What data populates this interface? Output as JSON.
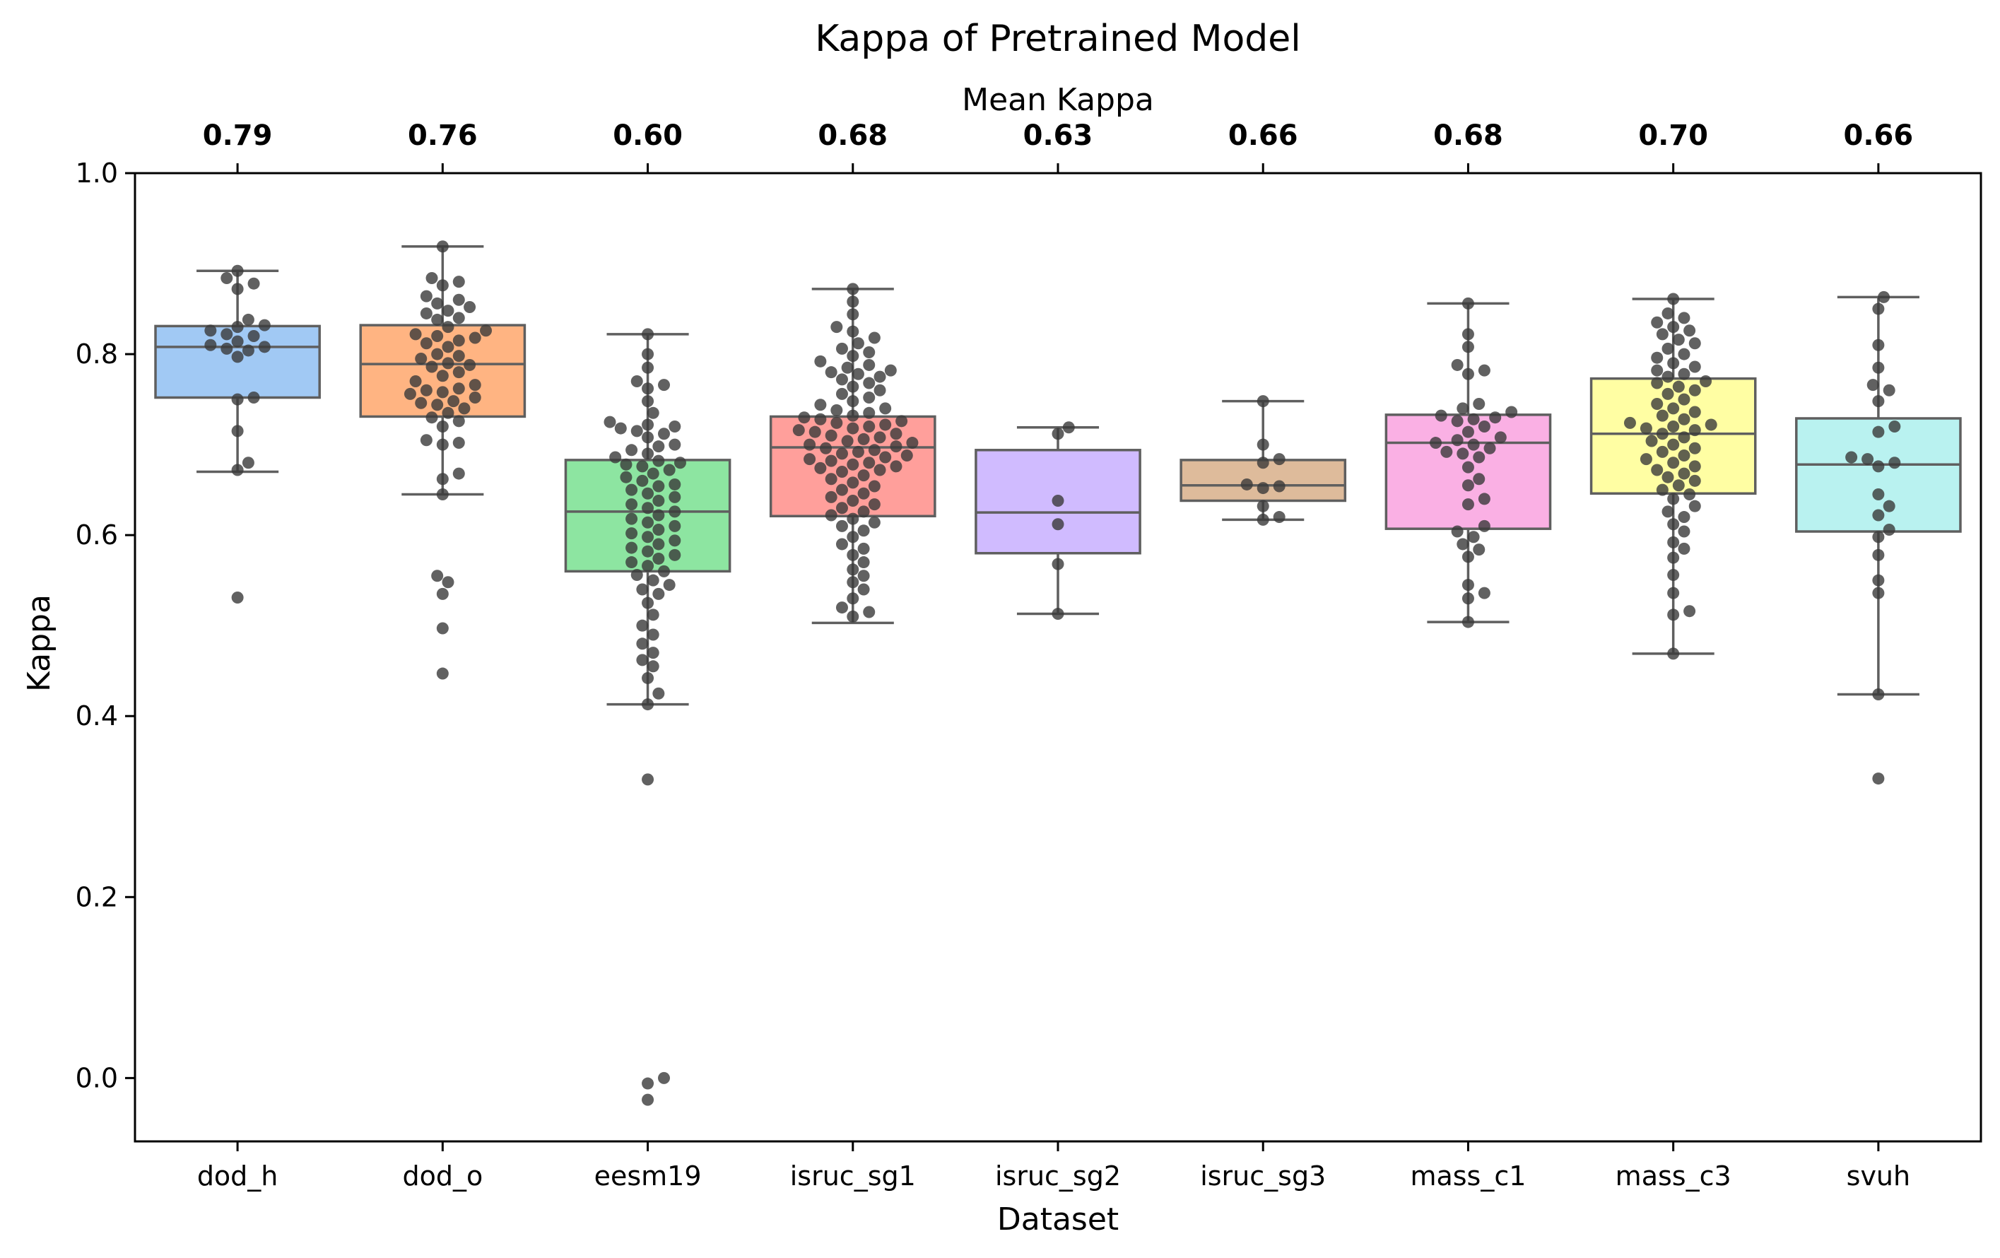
{
  "chart_data": {
    "type": "box",
    "title": "Kappa of Pretrained Model",
    "top_axis_label": "Mean Kappa",
    "xlabel": "Dataset",
    "ylabel": "Kappa",
    "ylim": [
      -0.07,
      1.0
    ],
    "yticks": [
      "0.0",
      "0.2",
      "0.4",
      "0.6",
      "0.8",
      "1.0"
    ],
    "ytick_values": [
      0.0,
      0.2,
      0.4,
      0.6,
      0.8,
      1.0
    ],
    "grid": false,
    "categories": [
      "dod_h",
      "dod_o",
      "eesm19",
      "isruc_sg1",
      "isruc_sg2",
      "isruc_sg3",
      "mass_c1",
      "mass_c3",
      "svuh"
    ],
    "means": [
      "0.79",
      "0.76",
      "0.60",
      "0.68",
      "0.63",
      "0.66",
      "0.68",
      "0.70",
      "0.66"
    ],
    "colors": [
      "#a1c9f4",
      "#ffb482",
      "#8de5a1",
      "#ff9f9b",
      "#d0bbff",
      "#debb9b",
      "#fab0e4",
      "#fffea3",
      "#b9f2f0"
    ],
    "boxes": [
      {
        "q1": 0.752,
        "median": 0.808,
        "q3": 0.831,
        "whisker_low": 0.67,
        "whisker_high": 0.892,
        "points": [
          0.892,
          0.884,
          0.878,
          0.872,
          0.838,
          0.832,
          0.83,
          0.826,
          0.822,
          0.82,
          0.814,
          0.81,
          0.808,
          0.806,
          0.804,
          0.797,
          0.752,
          0.75,
          0.715,
          0.68,
          0.672,
          0.531
        ]
      },
      {
        "q1": 0.731,
        "median": 0.789,
        "q3": 0.832,
        "whisker_low": 0.645,
        "whisker_high": 0.919,
        "points": [
          0.919,
          0.884,
          0.88,
          0.876,
          0.864,
          0.86,
          0.856,
          0.852,
          0.848,
          0.845,
          0.84,
          0.838,
          0.83,
          0.826,
          0.822,
          0.82,
          0.818,
          0.815,
          0.812,
          0.808,
          0.8,
          0.798,
          0.795,
          0.79,
          0.788,
          0.786,
          0.78,
          0.776,
          0.77,
          0.766,
          0.762,
          0.76,
          0.758,
          0.756,
          0.752,
          0.748,
          0.746,
          0.744,
          0.74,
          0.735,
          0.73,
          0.726,
          0.72,
          0.705,
          0.702,
          0.7,
          0.668,
          0.662,
          0.645,
          0.555,
          0.548,
          0.535,
          0.497,
          0.447
        ]
      },
      {
        "q1": 0.56,
        "median": 0.626,
        "q3": 0.683,
        "whisker_low": 0.413,
        "whisker_high": 0.822,
        "points": [
          0.822,
          0.8,
          0.785,
          0.77,
          0.766,
          0.762,
          0.748,
          0.735,
          0.725,
          0.722,
          0.72,
          0.718,
          0.715,
          0.712,
          0.708,
          0.7,
          0.698,
          0.694,
          0.69,
          0.686,
          0.682,
          0.68,
          0.678,
          0.676,
          0.672,
          0.668,
          0.664,
          0.66,
          0.656,
          0.654,
          0.65,
          0.646,
          0.642,
          0.638,
          0.634,
          0.63,
          0.626,
          0.622,
          0.618,
          0.614,
          0.61,
          0.606,
          0.602,
          0.598,
          0.594,
          0.59,
          0.586,
          0.582,
          0.578,
          0.574,
          0.57,
          0.566,
          0.56,
          0.556,
          0.55,
          0.545,
          0.54,
          0.535,
          0.525,
          0.512,
          0.5,
          0.49,
          0.48,
          0.47,
          0.462,
          0.455,
          0.442,
          0.425,
          0.413,
          0.33,
          0.0,
          -0.006,
          -0.024
        ]
      },
      {
        "q1": 0.621,
        "median": 0.697,
        "q3": 0.731,
        "whisker_low": 0.503,
        "whisker_high": 0.872,
        "points": [
          0.872,
          0.858,
          0.844,
          0.83,
          0.825,
          0.818,
          0.812,
          0.806,
          0.802,
          0.798,
          0.792,
          0.788,
          0.785,
          0.782,
          0.78,
          0.778,
          0.775,
          0.772,
          0.768,
          0.764,
          0.76,
          0.756,
          0.752,
          0.748,
          0.744,
          0.74,
          0.738,
          0.735,
          0.732,
          0.73,
          0.728,
          0.726,
          0.724,
          0.722,
          0.72,
          0.718,
          0.716,
          0.714,
          0.712,
          0.71,
          0.708,
          0.706,
          0.704,
          0.702,
          0.7,
          0.698,
          0.696,
          0.694,
          0.692,
          0.69,
          0.688,
          0.686,
          0.684,
          0.682,
          0.68,
          0.678,
          0.676,
          0.674,
          0.672,
          0.67,
          0.666,
          0.662,
          0.658,
          0.654,
          0.65,
          0.646,
          0.642,
          0.638,
          0.634,
          0.63,
          0.626,
          0.622,
          0.618,
          0.614,
          0.61,
          0.605,
          0.598,
          0.59,
          0.585,
          0.578,
          0.57,
          0.562,
          0.555,
          0.548,
          0.54,
          0.53,
          0.52,
          0.515,
          0.51
        ]
      },
      {
        "q1": 0.58,
        "median": 0.625,
        "q3": 0.694,
        "whisker_low": 0.513,
        "whisker_high": 0.719,
        "points": [
          0.719,
          0.712,
          0.638,
          0.612,
          0.568,
          0.513
        ]
      },
      {
        "q1": 0.638,
        "median": 0.655,
        "q3": 0.683,
        "whisker_low": 0.617,
        "whisker_high": 0.748,
        "points": [
          0.748,
          0.7,
          0.684,
          0.68,
          0.656,
          0.654,
          0.652,
          0.632,
          0.62,
          0.617
        ]
      },
      {
        "q1": 0.607,
        "median": 0.702,
        "q3": 0.733,
        "whisker_low": 0.504,
        "whisker_high": 0.856,
        "points": [
          0.856,
          0.822,
          0.808,
          0.788,
          0.782,
          0.778,
          0.745,
          0.74,
          0.736,
          0.732,
          0.73,
          0.728,
          0.726,
          0.72,
          0.714,
          0.708,
          0.705,
          0.702,
          0.7,
          0.696,
          0.692,
          0.69,
          0.686,
          0.675,
          0.662,
          0.655,
          0.64,
          0.634,
          0.61,
          0.604,
          0.598,
          0.59,
          0.584,
          0.576,
          0.545,
          0.536,
          0.53,
          0.504
        ]
      },
      {
        "q1": 0.646,
        "median": 0.712,
        "q3": 0.773,
        "whisker_low": 0.469,
        "whisker_high": 0.861,
        "points": [
          0.861,
          0.845,
          0.84,
          0.835,
          0.83,
          0.826,
          0.822,
          0.816,
          0.812,
          0.806,
          0.8,
          0.796,
          0.79,
          0.786,
          0.782,
          0.778,
          0.775,
          0.77,
          0.768,
          0.764,
          0.76,
          0.756,
          0.75,
          0.745,
          0.74,
          0.736,
          0.732,
          0.728,
          0.724,
          0.722,
          0.72,
          0.718,
          0.716,
          0.712,
          0.708,
          0.704,
          0.7,
          0.696,
          0.692,
          0.688,
          0.684,
          0.68,
          0.676,
          0.672,
          0.668,
          0.664,
          0.66,
          0.655,
          0.65,
          0.645,
          0.64,
          0.632,
          0.626,
          0.62,
          0.612,
          0.604,
          0.592,
          0.585,
          0.575,
          0.556,
          0.536,
          0.516,
          0.512,
          0.469
        ]
      },
      {
        "q1": 0.604,
        "median": 0.678,
        "q3": 0.729,
        "whisker_low": 0.424,
        "whisker_high": 0.863,
        "points": [
          0.863,
          0.85,
          0.81,
          0.785,
          0.766,
          0.76,
          0.748,
          0.72,
          0.714,
          0.686,
          0.684,
          0.68,
          0.676,
          0.645,
          0.632,
          0.622,
          0.606,
          0.598,
          0.578,
          0.55,
          0.536,
          0.424,
          0.331
        ]
      }
    ]
  }
}
